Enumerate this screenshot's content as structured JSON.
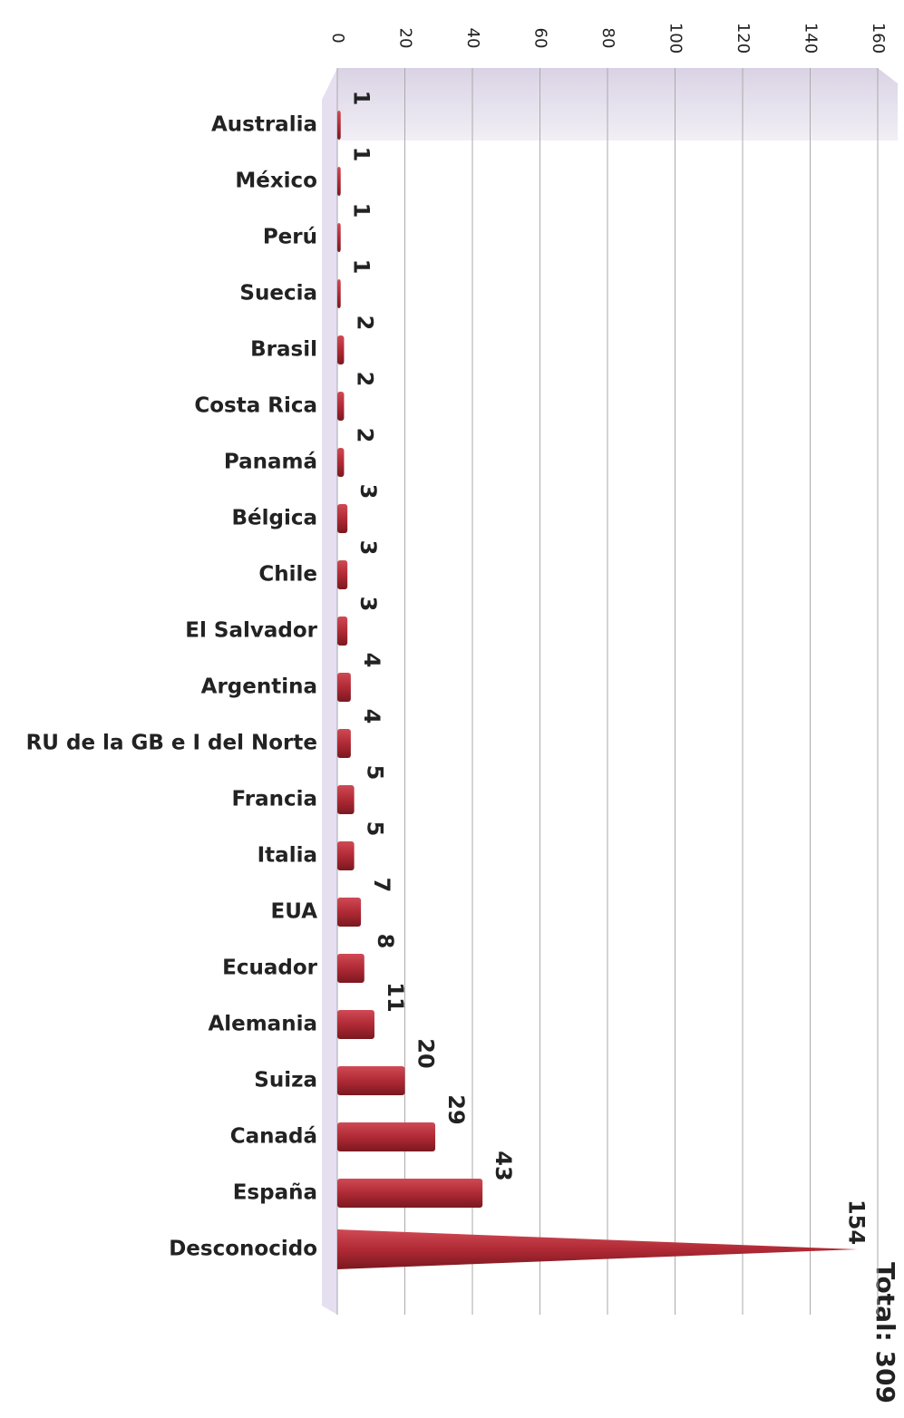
{
  "chart_data": {
    "type": "bar",
    "orientation": "horizontal",
    "categories": [
      "Australia",
      "México",
      "Perú",
      "Suecia",
      "Brasil",
      "Costa Rica",
      "Panamá",
      "Bélgica",
      "Chile",
      "El Salvador",
      "Argentina",
      "RU de la GB e I del Norte",
      "Francia",
      "Italia",
      "EUA",
      "Ecuador",
      "Alemania",
      "Suiza",
      "Canadá",
      "España",
      "Desconocido"
    ],
    "values": [
      1,
      1,
      1,
      1,
      2,
      2,
      2,
      3,
      3,
      3,
      4,
      4,
      5,
      5,
      7,
      8,
      11,
      20,
      29,
      43,
      154
    ],
    "color": "#b02a35",
    "xlim": [
      0,
      160
    ],
    "xticks": [
      0,
      20,
      40,
      60,
      80,
      100,
      120,
      140,
      160
    ],
    "grid": true,
    "annotation": "Total: 309"
  }
}
